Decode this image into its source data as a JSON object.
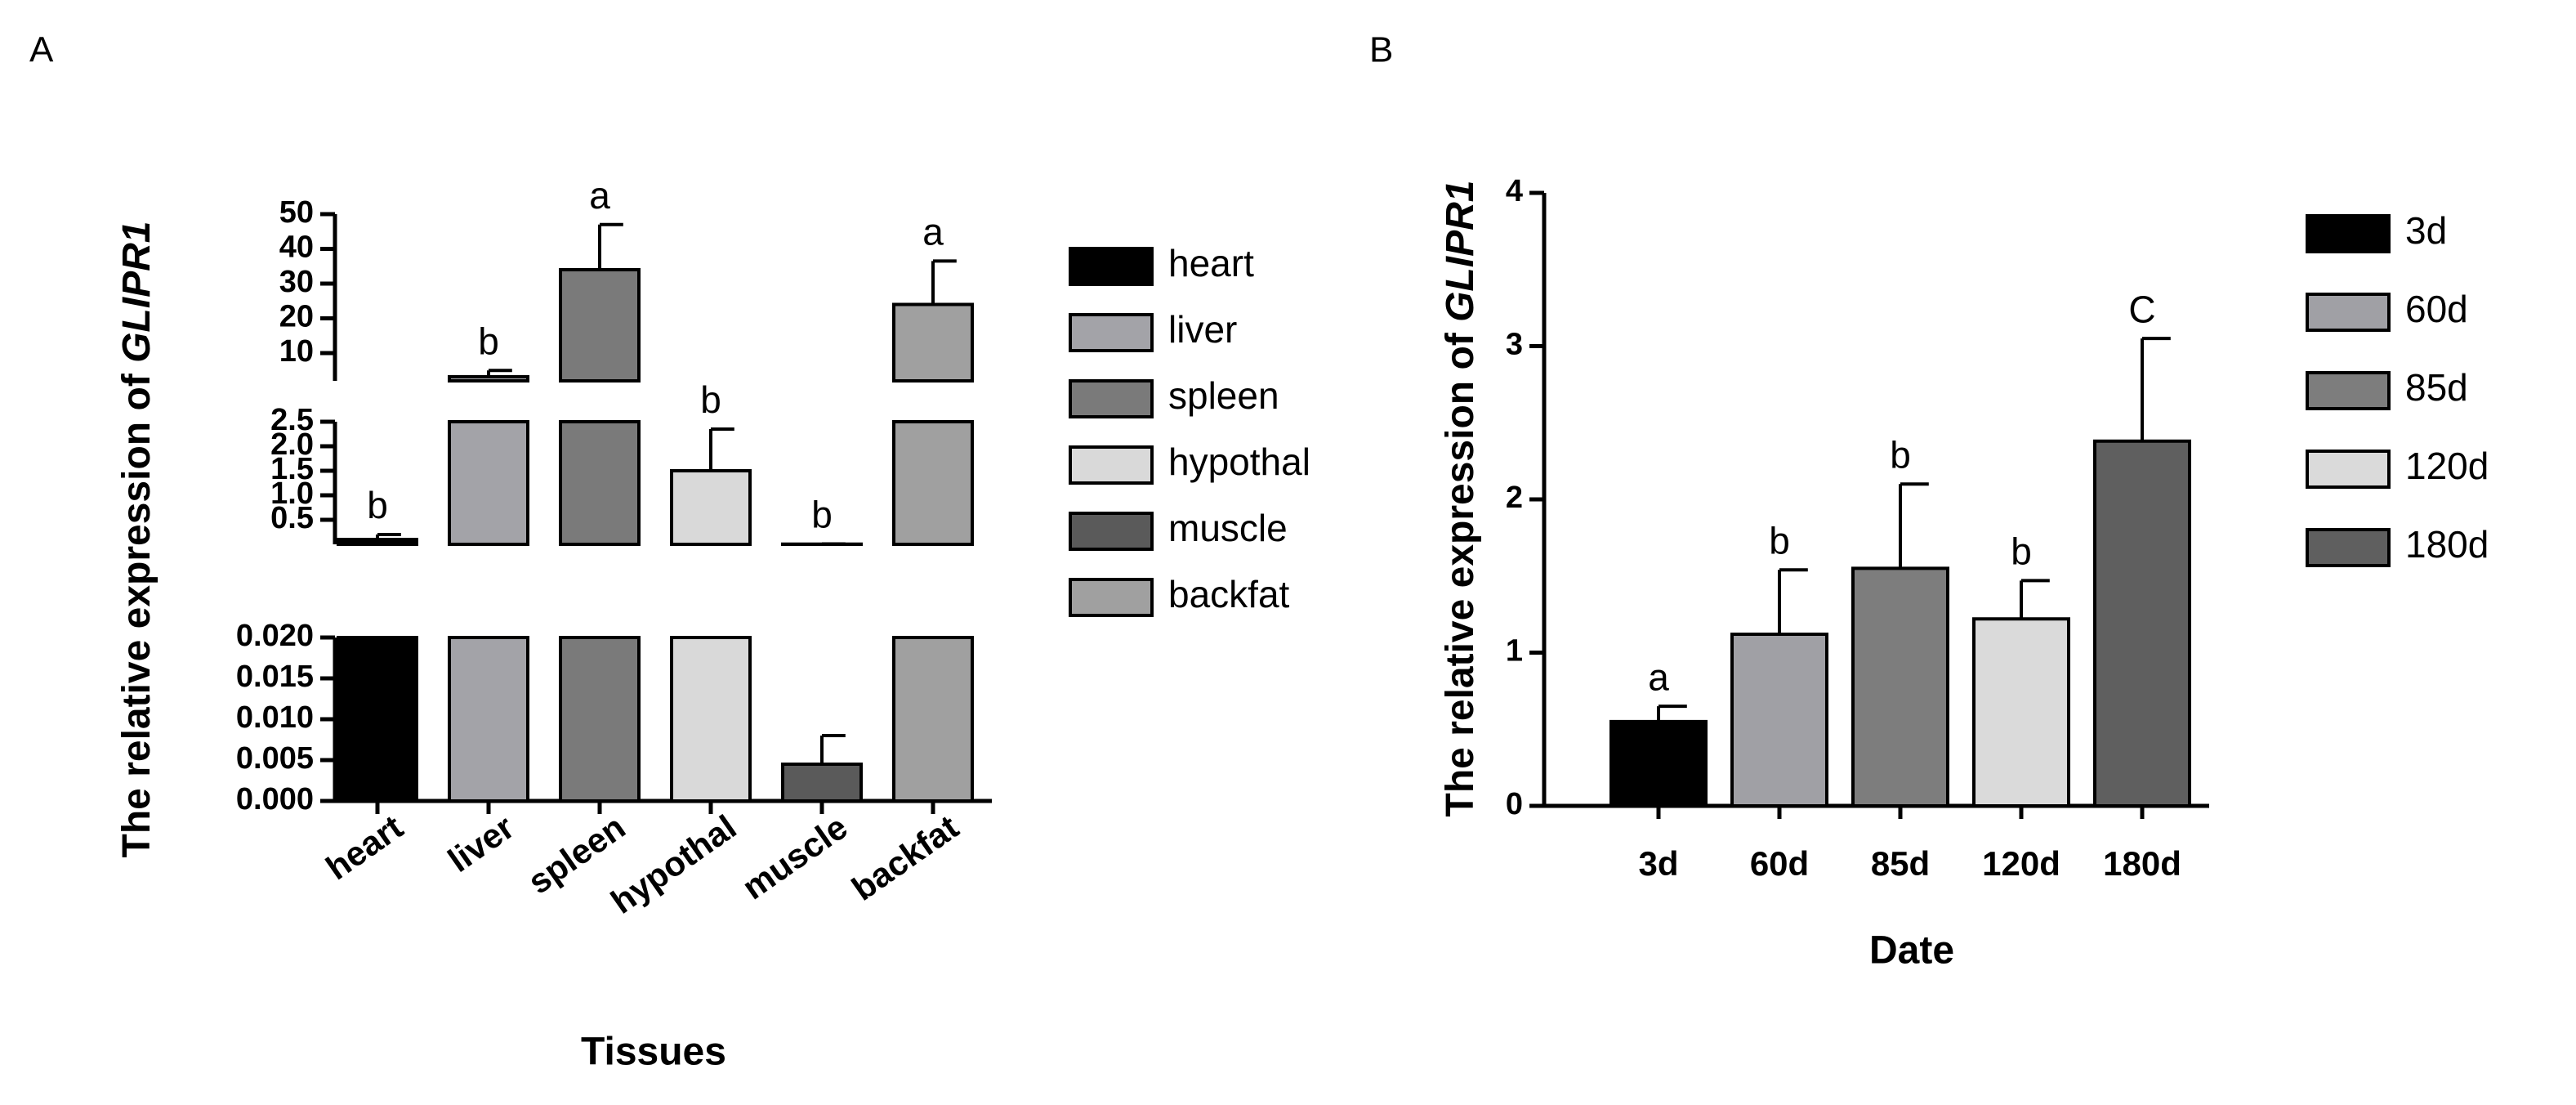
{
  "chart_data": [
    {
      "type": "bar",
      "panel": "A",
      "xlabel": "Tissues",
      "ylabel": "The relative expression of ",
      "ylabel_gene": "GLIPR1",
      "categories": [
        "heart",
        "liver",
        "spleen",
        "hypothal",
        "muscle",
        "backfat"
      ],
      "values": [
        0.1,
        3.2,
        34,
        1.5,
        0.0045,
        24
      ],
      "errors": [
        0.1,
        1.8,
        13,
        0.85,
        0.0035,
        12.5
      ],
      "letters": [
        "b",
        "b",
        "a",
        "b",
        "b",
        "a"
      ],
      "colors": [
        "#000000",
        "#a3a3a8",
        "#7a7a7a",
        "#d9d9d9",
        "#5a5a5a",
        "#a0a0a0"
      ],
      "legend": "right",
      "y_segments": [
        {
          "ylim": [
            0,
            0.02
          ],
          "yticks": [
            {
              "value": 0,
              "label": "0.000"
            },
            0.005,
            {
              "value": 0.01,
              "label": "0.010"
            },
            0.015,
            {
              "value": 0.02,
              "label": "0.020"
            }
          ]
        },
        {
          "ylim": [
            0,
            2.5
          ],
          "yticks": [
            0.5,
            {
              "value": 1,
              "label": "1.0"
            },
            1.5,
            {
              "value": 2,
              "label": "2.0"
            },
            2.5
          ]
        },
        {
          "ylim": [
            2,
            50
          ],
          "yticks": [
            10,
            20,
            30,
            40,
            50
          ]
        }
      ]
    },
    {
      "type": "bar",
      "panel": "B",
      "xlabel": "Date",
      "ylabel": "The relative expression of ",
      "ylabel_gene": "GLIPR1",
      "categories": [
        "3d",
        "60d",
        "85d",
        "120d",
        "180d"
      ],
      "values": [
        0.55,
        1.12,
        1.55,
        1.22,
        2.38
      ],
      "errors": [
        0.1,
        0.42,
        0.55,
        0.25,
        0.67
      ],
      "letters": [
        "a",
        "b",
        "b",
        "b",
        "C"
      ],
      "colors": [
        "#000000",
        "#a0a0a5",
        "#7d7d7d",
        "#dadada",
        "#5f5f5f"
      ],
      "legend": "right",
      "ylim": [
        0,
        4
      ],
      "yticks": [
        0,
        1,
        2,
        3,
        4
      ]
    }
  ]
}
